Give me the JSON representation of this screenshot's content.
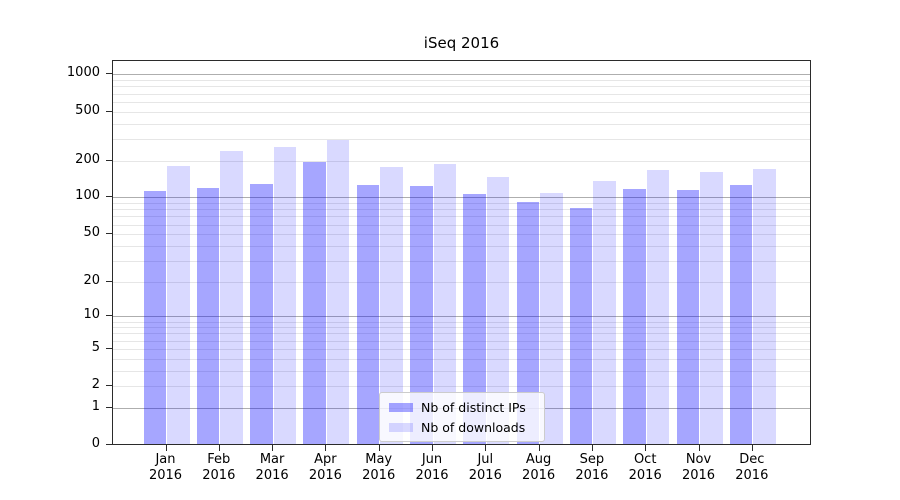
{
  "chart_data": {
    "type": "bar",
    "title": "iSeq 2016",
    "yscale": "log1p",
    "ylim": [
      0,
      1280
    ],
    "yticks": [
      0,
      1,
      2,
      5,
      10,
      20,
      50,
      100,
      200,
      500,
      1000
    ],
    "grid": {
      "major_ticks": [
        1,
        10,
        100,
        1000
      ],
      "major_color": "#aeaeae",
      "minor_color": "#e6e6e6",
      "minor_multiples": [
        2,
        3,
        4,
        5,
        6,
        7,
        8,
        9
      ]
    },
    "categories": [
      "Jan",
      "Feb",
      "Mar",
      "Apr",
      "May",
      "Jun",
      "Jul",
      "Aug",
      "Sep",
      "Oct",
      "Nov",
      "Dec"
    ],
    "category_year": "2016",
    "series": [
      {
        "name": "Nb of distinct IPs",
        "fill": "rgba(0,0,255,0.35)",
        "values": [
          112,
          120,
          128,
          196,
          127,
          124,
          107,
          91,
          82,
          118,
          115,
          127
        ]
      },
      {
        "name": "Nb of downloads",
        "fill": "rgba(0,0,255,0.15)",
        "values": [
          182,
          240,
          260,
          295,
          178,
          187,
          148,
          108,
          136,
          168,
          161,
          170
        ]
      }
    ],
    "legend_position": "lower-center"
  }
}
